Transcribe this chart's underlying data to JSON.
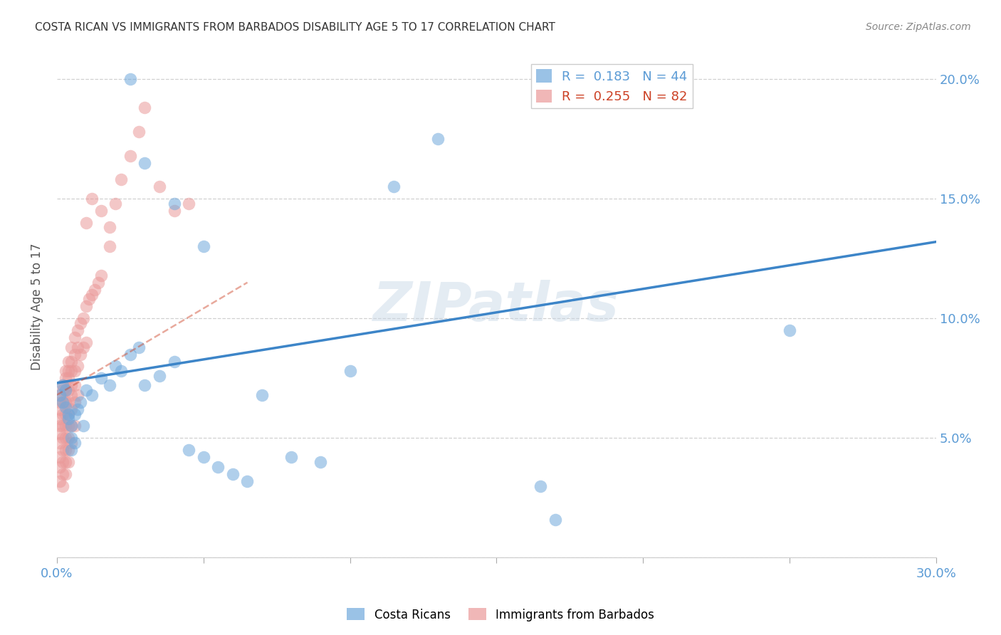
{
  "title": "COSTA RICAN VS IMMIGRANTS FROM BARBADOS DISABILITY AGE 5 TO 17 CORRELATION CHART",
  "source": "Source: ZipAtlas.com",
  "ylabel": "Disability Age 5 to 17",
  "xlim": [
    0.0,
    0.3
  ],
  "ylim": [
    0.0,
    0.21
  ],
  "xtick_positions": [
    0.0,
    0.05,
    0.1,
    0.15,
    0.2,
    0.25,
    0.3
  ],
  "xtick_labels": [
    "0.0%",
    "",
    "",
    "",
    "",
    "",
    "30.0%"
  ],
  "ytick_positions": [
    0.0,
    0.05,
    0.1,
    0.15,
    0.2
  ],
  "ytick_labels_right": [
    "",
    "5.0%",
    "10.0%",
    "15.0%",
    "20.0%"
  ],
  "blue_R": "0.183",
  "blue_N": "44",
  "pink_R": "0.255",
  "pink_N": "82",
  "blue_color": "#6fa8dc",
  "pink_color": "#ea9999",
  "blue_line_color": "#3d85c8",
  "pink_line_color": "#cc4125",
  "watermark": "ZIPatlas",
  "legend_label_blue": "Costa Ricans",
  "legend_label_pink": "Immigrants from Barbados",
  "blue_line_x": [
    0.0,
    0.3
  ],
  "blue_line_y": [
    0.073,
    0.132
  ],
  "pink_line_x": [
    0.0,
    0.065
  ],
  "pink_line_y": [
    0.068,
    0.115
  ],
  "blue_scatter_x": [
    0.001,
    0.002,
    0.002,
    0.003,
    0.003,
    0.004,
    0.004,
    0.005,
    0.005,
    0.006,
    0.006,
    0.007,
    0.008,
    0.009,
    0.01,
    0.012,
    0.015,
    0.018,
    0.02,
    0.022,
    0.025,
    0.028,
    0.03,
    0.035,
    0.04,
    0.045,
    0.05,
    0.055,
    0.06,
    0.065,
    0.07,
    0.08,
    0.09,
    0.1,
    0.115,
    0.13,
    0.025,
    0.03,
    0.04,
    0.05,
    0.25,
    0.165,
    0.17,
    0.005
  ],
  "blue_scatter_y": [
    0.068,
    0.072,
    0.065,
    0.07,
    0.063,
    0.06,
    0.058,
    0.055,
    0.05,
    0.06,
    0.048,
    0.062,
    0.065,
    0.055,
    0.07,
    0.068,
    0.075,
    0.072,
    0.08,
    0.078,
    0.085,
    0.088,
    0.072,
    0.076,
    0.082,
    0.045,
    0.042,
    0.038,
    0.035,
    0.032,
    0.068,
    0.042,
    0.04,
    0.078,
    0.155,
    0.175,
    0.2,
    0.165,
    0.148,
    0.13,
    0.095,
    0.03,
    0.016,
    0.045
  ],
  "pink_scatter_x": [
    0.001,
    0.001,
    0.001,
    0.001,
    0.001,
    0.001,
    0.001,
    0.001,
    0.001,
    0.001,
    0.002,
    0.002,
    0.002,
    0.002,
    0.002,
    0.002,
    0.002,
    0.002,
    0.002,
    0.002,
    0.003,
    0.003,
    0.003,
    0.003,
    0.003,
    0.003,
    0.003,
    0.003,
    0.003,
    0.003,
    0.004,
    0.004,
    0.004,
    0.004,
    0.004,
    0.004,
    0.004,
    0.004,
    0.004,
    0.004,
    0.005,
    0.005,
    0.005,
    0.005,
    0.005,
    0.005,
    0.005,
    0.005,
    0.006,
    0.006,
    0.006,
    0.006,
    0.006,
    0.006,
    0.007,
    0.007,
    0.007,
    0.007,
    0.008,
    0.008,
    0.009,
    0.009,
    0.01,
    0.01,
    0.011,
    0.012,
    0.013,
    0.014,
    0.015,
    0.018,
    0.02,
    0.022,
    0.025,
    0.028,
    0.03,
    0.035,
    0.04,
    0.045,
    0.018,
    0.015,
    0.012,
    0.01
  ],
  "pink_scatter_y": [
    0.068,
    0.065,
    0.062,
    0.058,
    0.055,
    0.052,
    0.048,
    0.042,
    0.038,
    0.032,
    0.072,
    0.07,
    0.065,
    0.06,
    0.055,
    0.05,
    0.045,
    0.04,
    0.035,
    0.03,
    0.078,
    0.075,
    0.07,
    0.065,
    0.06,
    0.055,
    0.05,
    0.045,
    0.04,
    0.035,
    0.082,
    0.078,
    0.075,
    0.07,
    0.065,
    0.06,
    0.055,
    0.05,
    0.045,
    0.04,
    0.088,
    0.082,
    0.078,
    0.072,
    0.068,
    0.062,
    0.055,
    0.048,
    0.092,
    0.085,
    0.078,
    0.072,
    0.065,
    0.055,
    0.095,
    0.088,
    0.08,
    0.068,
    0.098,
    0.085,
    0.1,
    0.088,
    0.105,
    0.09,
    0.108,
    0.11,
    0.112,
    0.115,
    0.118,
    0.138,
    0.148,
    0.158,
    0.168,
    0.178,
    0.188,
    0.155,
    0.145,
    0.148,
    0.13,
    0.145,
    0.15,
    0.14
  ]
}
